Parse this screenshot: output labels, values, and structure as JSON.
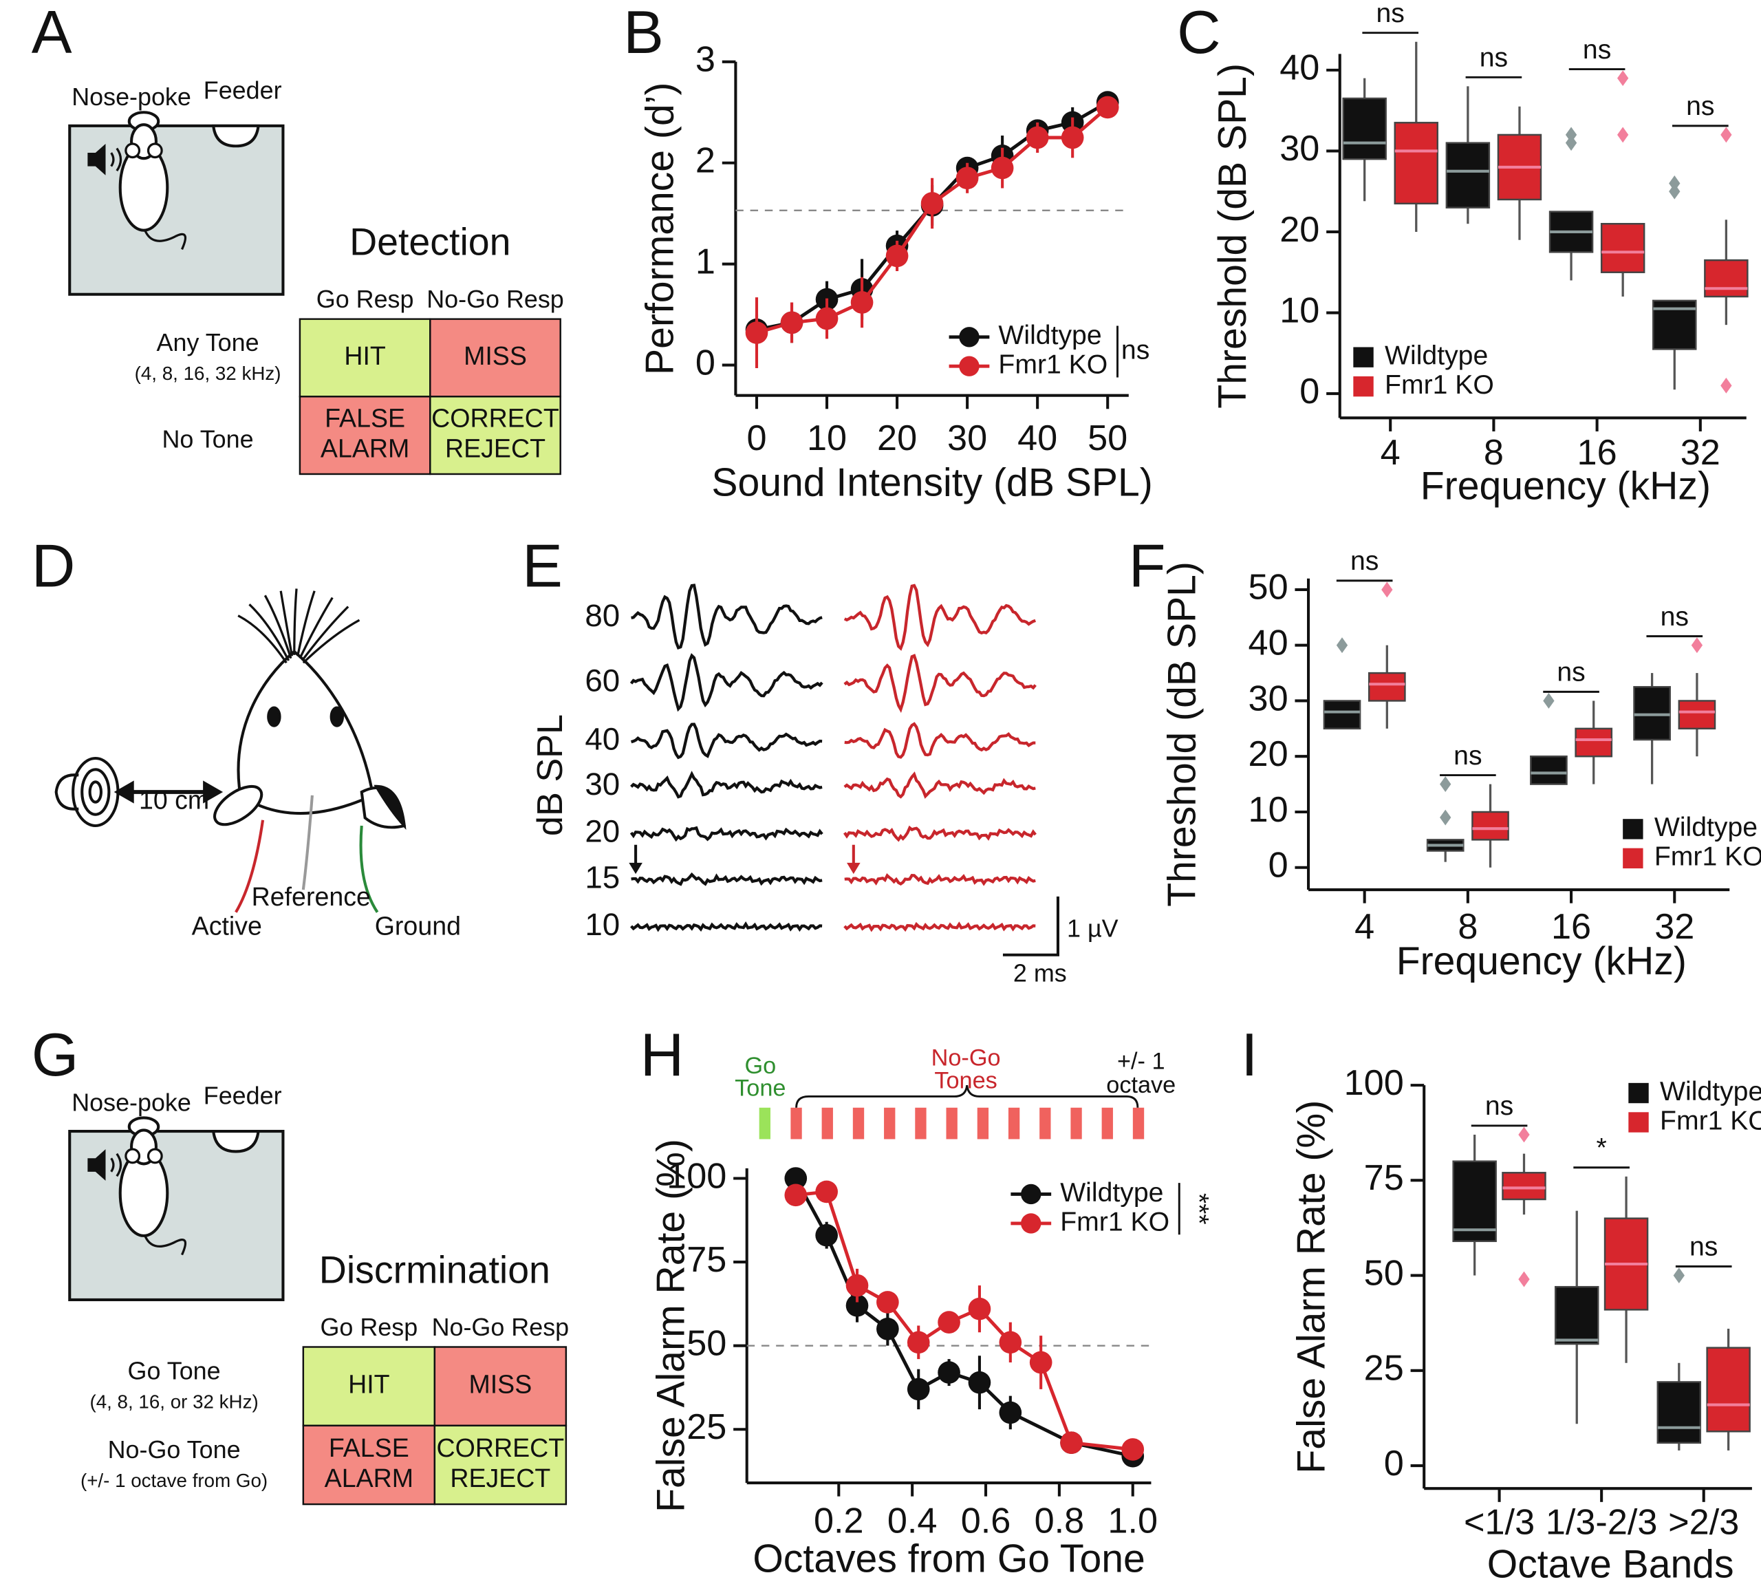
{
  "panel_labels": [
    "A",
    "B",
    "C",
    "D",
    "E",
    "F",
    "G",
    "H",
    "I"
  ],
  "panel_a": {
    "nose_poke": "Nose-poke",
    "feeder": "Feeder",
    "title": "Detection",
    "col_headers": [
      "Go Resp",
      "No-Go Resp"
    ],
    "rows": [
      {
        "label": "Any Tone",
        "sublabel": "(4, 8, 16, 32 kHz)"
      },
      {
        "label": "No Tone"
      }
    ],
    "cells": [
      [
        [
          "HIT"
        ],
        [
          "MISS"
        ]
      ],
      [
        [
          "FALSE",
          "ALARM"
        ],
        [
          "CORRECT",
          "REJECT"
        ]
      ]
    ]
  },
  "panel_d": {
    "distance": "10 cm",
    "reference": "Reference",
    "active": "Active",
    "ground": "Ground"
  },
  "panel_e": {
    "ylabel": "dB SPL",
    "levels": [
      80,
      60,
      40,
      30,
      20,
      15,
      10
    ],
    "scale_y": "1 µV",
    "scale_x": "2 ms"
  },
  "panel_g": {
    "nose_poke": "Nose-poke",
    "feeder": "Feeder",
    "title": "Discrmination",
    "col_headers": [
      "Go Resp",
      "No-Go Resp"
    ],
    "rows": [
      {
        "label": "Go Tone",
        "sublabel": "(4, 8, 16, or 32 kHz)"
      },
      {
        "label": "No-Go Tone",
        "sublabel": "(+/- 1 octave from Go)"
      }
    ],
    "cells": [
      [
        [
          "HIT"
        ],
        [
          "MISS"
        ]
      ],
      [
        [
          "FALSE",
          "ALARM"
        ],
        [
          "CORRECT",
          "REJECT"
        ]
      ]
    ]
  },
  "panel_h_header": {
    "go": [
      "Go",
      "Tone"
    ],
    "nogo": [
      "No-Go",
      "Tones"
    ],
    "range": [
      "+/- 1",
      "octave"
    ]
  },
  "chart_data": [
    {
      "type": "line",
      "ylabel": "Performance (d’)",
      "xlabel": "Sound Intensity (dB SPL)",
      "xlim": [
        -3,
        53
      ],
      "ylim": [
        -0.3,
        3
      ],
      "xticks": [
        0,
        10,
        20,
        30,
        40,
        50
      ],
      "yticks": [
        0,
        1,
        2,
        3
      ],
      "reference_line": 1.53,
      "legend": "lower right",
      "legend_note": "ns",
      "series": [
        {
          "name": "Wildtype",
          "color": "#111111",
          "x": [
            0,
            5,
            10,
            15,
            20,
            25,
            30,
            35,
            40,
            45,
            50
          ],
          "values": [
            0.35,
            0.42,
            0.65,
            0.75,
            1.18,
            1.58,
            1.95,
            2.07,
            2.32,
            2.4,
            2.6
          ],
          "errors": [
            0.15,
            0.2,
            0.18,
            0.3,
            0.15,
            0.2,
            0.1,
            0.2,
            0.1,
            0.15,
            0.05
          ]
        },
        {
          "name": "Fmr1 KO",
          "color": "#d7262d",
          "x": [
            0,
            5,
            10,
            15,
            20,
            25,
            30,
            35,
            40,
            45,
            50
          ],
          "values": [
            0.32,
            0.42,
            0.46,
            0.62,
            1.08,
            1.6,
            1.85,
            1.95,
            2.25,
            2.25,
            2.55
          ],
          "errors": [
            0.35,
            0.2,
            0.2,
            0.25,
            0.15,
            0.25,
            0.15,
            0.2,
            0.15,
            0.2,
            0.1
          ]
        }
      ]
    },
    {
      "type": "box",
      "ylabel": "Threshold (dB SPL)",
      "xlabel": "Frequency (kHz)",
      "categories": [
        "4",
        "8",
        "16",
        "32"
      ],
      "ylim": [
        -3,
        42
      ],
      "yticks": [
        0,
        10,
        20,
        30,
        40
      ],
      "legend": "lower left",
      "significance": [
        "ns",
        "ns",
        "ns",
        "ns"
      ],
      "series": [
        {
          "name": "Wildtype",
          "color": "#111111",
          "outlier_color": "#8c9b9b",
          "boxes": [
            {
              "min": 23.8,
              "q1": 29,
              "median": 31,
              "q3": 36.5,
              "max": 39,
              "outliers": []
            },
            {
              "min": 21,
              "q1": 23,
              "median": 27.5,
              "q3": 31,
              "max": 38,
              "outliers": []
            },
            {
              "min": 14,
              "q1": 17.5,
              "median": 20,
              "q3": 22.5,
              "max": 22.5,
              "outliers": [
                31,
                32
              ]
            },
            {
              "min": 0.5,
              "q1": 5.5,
              "median": 10.5,
              "q3": 11.5,
              "max": 11.5,
              "outliers": [
                26,
                25
              ]
            }
          ]
        },
        {
          "name": "Fmr1 KO",
          "color": "#d7262d",
          "outlier_color": "#f27f9c",
          "boxes": [
            {
              "min": 20,
              "q1": 23.5,
              "median": 30,
              "q3": 33.5,
              "max": 43.5,
              "outliers": []
            },
            {
              "min": 19,
              "q1": 24,
              "median": 28,
              "q3": 32,
              "max": 35.5,
              "outliers": []
            },
            {
              "min": 12,
              "q1": 15,
              "median": 17.5,
              "q3": 21,
              "max": 21,
              "outliers": [
                32,
                39
              ]
            },
            {
              "min": 8.5,
              "q1": 12,
              "median": 13,
              "q3": 16.5,
              "max": 21.5,
              "outliers": [
                32,
                1
              ]
            }
          ]
        }
      ]
    },
    {
      "type": "box",
      "ylabel": "Threshold (dB SPL)",
      "xlabel": "Frequency (kHz)",
      "categories": [
        "4",
        "8",
        "16",
        "32"
      ],
      "ylim": [
        -4,
        52
      ],
      "yticks": [
        0,
        10,
        20,
        30,
        40,
        50
      ],
      "legend": "lower right",
      "significance": [
        "ns",
        "ns",
        "ns",
        "ns"
      ],
      "series": [
        {
          "name": "Wildtype",
          "color": "#111111",
          "outlier_color": "#8c9b9b",
          "boxes": [
            {
              "min": 25,
              "q1": 25,
              "median": 28,
              "q3": 30,
              "max": 30,
              "outliers": [
                40
              ]
            },
            {
              "min": 1,
              "q1": 3,
              "median": 4,
              "q3": 5,
              "max": 5,
              "outliers": [
                15,
                9
              ]
            },
            {
              "min": 15,
              "q1": 15,
              "median": 17,
              "q3": 20,
              "max": 20,
              "outliers": [
                30
              ]
            },
            {
              "min": 15,
              "q1": 23,
              "median": 27.5,
              "q3": 32.5,
              "max": 35,
              "outliers": []
            }
          ]
        },
        {
          "name": "Fmr1 KO",
          "color": "#d7262d",
          "outlier_color": "#f27f9c",
          "boxes": [
            {
              "min": 25,
              "q1": 30,
              "median": 33,
              "q3": 35,
              "max": 40,
              "outliers": [
                50
              ]
            },
            {
              "min": 0,
              "q1": 5,
              "median": 7,
              "q3": 10,
              "max": 15,
              "outliers": []
            },
            {
              "min": 15,
              "q1": 20,
              "median": 23,
              "q3": 25,
              "max": 30,
              "outliers": []
            },
            {
              "min": 20,
              "q1": 25,
              "median": 28,
              "q3": 30,
              "max": 35,
              "outliers": [
                40
              ]
            }
          ]
        }
      ]
    },
    {
      "type": "line",
      "ylabel": "False Alarm Rate (%)",
      "xlabel": "Octaves from Go Tone",
      "xlim": [
        -0.05,
        1.05
      ],
      "ylim": [
        9,
        103
      ],
      "xticks": [
        0.2,
        0.4,
        0.6,
        0.8,
        {
          "value": 1,
          "label": "1.0"
        }
      ],
      "yticks": [
        25,
        50,
        75,
        100
      ],
      "reference_line": 50,
      "legend": "upper right",
      "legend_note": "***",
      "series": [
        {
          "name": "Wildtype",
          "color": "#111111",
          "x": [
            0.083,
            0.167,
            0.25,
            0.333,
            0.417,
            0.5,
            0.583,
            0.667,
            0.833,
            1
          ],
          "values": [
            100,
            83,
            62,
            55,
            37,
            42,
            39,
            30,
            21,
            17
          ],
          "errors": [
            0,
            4,
            5,
            5,
            6,
            4,
            8,
            5,
            3,
            2
          ]
        },
        {
          "name": "Fmr1 KO",
          "color": "#d7262d",
          "x": [
            0.083,
            0.167,
            0.25,
            0.333,
            0.417,
            0.5,
            0.583,
            0.667,
            0.75,
            0.833,
            1
          ],
          "values": [
            95,
            96,
            68,
            63,
            51,
            57,
            61,
            51,
            45,
            21,
            19
          ],
          "errors": [
            0,
            0,
            5,
            3,
            5,
            3,
            7,
            6,
            8,
            3,
            2
          ]
        }
      ]
    },
    {
      "type": "box",
      "ylabel": "False Alarm Rate (%)",
      "xlabel": "Octave Bands",
      "categories": [
        "<1/3",
        "1/3-2/3",
        ">2/3"
      ],
      "ylim": [
        -6,
        100
      ],
      "yticks": [
        0,
        25,
        50,
        75,
        100
      ],
      "legend": "upper right",
      "significance": [
        "ns",
        "*",
        "ns"
      ],
      "series": [
        {
          "name": "Wildtype",
          "color": "#111111",
          "outlier_color": "#8c9b9b",
          "boxes": [
            {
              "min": 50,
              "q1": 59,
              "median": 62,
              "q3": 80,
              "max": 87,
              "outliers": []
            },
            {
              "min": 11,
              "q1": 32,
              "median": 33,
              "q3": 47,
              "max": 67,
              "outliers": []
            },
            {
              "min": 4,
              "q1": 6,
              "median": 10,
              "q3": 22,
              "max": 27,
              "outliers": [
                50
              ]
            }
          ]
        },
        {
          "name": "Fmr1 KO",
          "color": "#d7262d",
          "outlier_color": "#f27f9c",
          "boxes": [
            {
              "min": 66,
              "q1": 70,
              "median": 73,
              "q3": 77,
              "max": 82,
              "outliers": [
                87,
                49
              ]
            },
            {
              "min": 27,
              "q1": 41,
              "median": 53,
              "q3": 65,
              "max": 76,
              "outliers": []
            },
            {
              "min": 4,
              "q1": 9,
              "median": 16,
              "q3": 31,
              "max": 36,
              "outliers": []
            }
          ]
        }
      ]
    }
  ]
}
